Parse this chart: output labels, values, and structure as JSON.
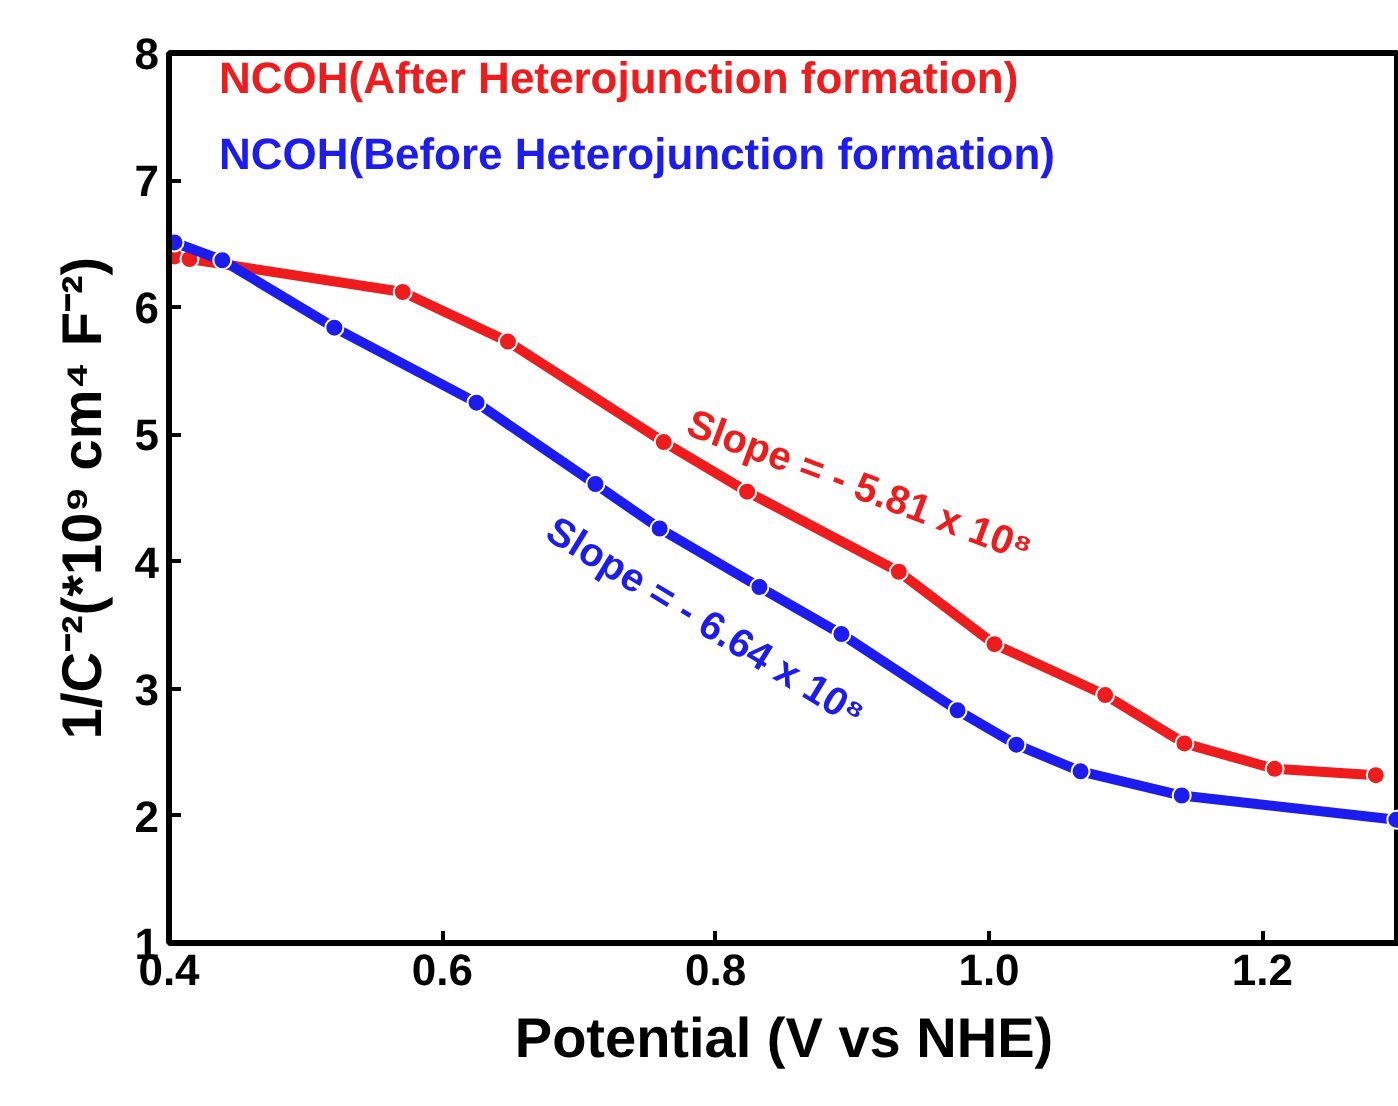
{
  "chart_data": {
    "type": "line",
    "xlabel": "Potential (V vs NHE)",
    "ylabel": "1/C⁻²(*10⁹ cm⁴ F⁻²)",
    "xlim": [
      0.4,
      1.3
    ],
    "xticks": [
      {
        "value": 0.4,
        "label": "0.4"
      },
      {
        "value": 0.6,
        "label": "0.6"
      },
      {
        "value": 0.8,
        "label": "0.8"
      },
      {
        "value": 1.0,
        "label": "1.0"
      },
      {
        "value": 1.2,
        "label": "1.2"
      }
    ],
    "ylim": [
      1,
      8
    ],
    "yticks": [
      1,
      2,
      3,
      4,
      5,
      6,
      7,
      8
    ],
    "grid": false,
    "legend": "top left",
    "marker": "circle",
    "line_style": "solid",
    "series": [
      {
        "name": "NCOH(After Heterojunction formation)",
        "color": "#ee1c1c",
        "x": [
          0.404,
          0.415,
          0.571,
          0.648,
          0.762,
          0.823,
          0.934,
          1.004,
          1.085,
          1.143,
          1.209,
          1.283
        ],
        "values": [
          6.4,
          6.38,
          6.12,
          5.73,
          4.94,
          4.55,
          3.92,
          3.35,
          2.95,
          2.57,
          2.37,
          2.32
        ]
      },
      {
        "name": "NCOH(Before Heterojunction formation)",
        "color": "#1c1cee",
        "x": [
          0.404,
          0.439,
          0.521,
          0.625,
          0.712,
          0.759,
          0.832,
          0.892,
          0.977,
          1.02,
          1.067,
          1.141,
          1.298
        ],
        "values": [
          6.51,
          6.37,
          5.84,
          5.25,
          4.61,
          4.26,
          3.8,
          3.43,
          2.83,
          2.56,
          2.35,
          2.16,
          1.97
        ]
      }
    ],
    "annotations": [
      "Slope = - 5.81 x 10⁸",
      "Slope = - 6.64 x 10⁸"
    ]
  }
}
